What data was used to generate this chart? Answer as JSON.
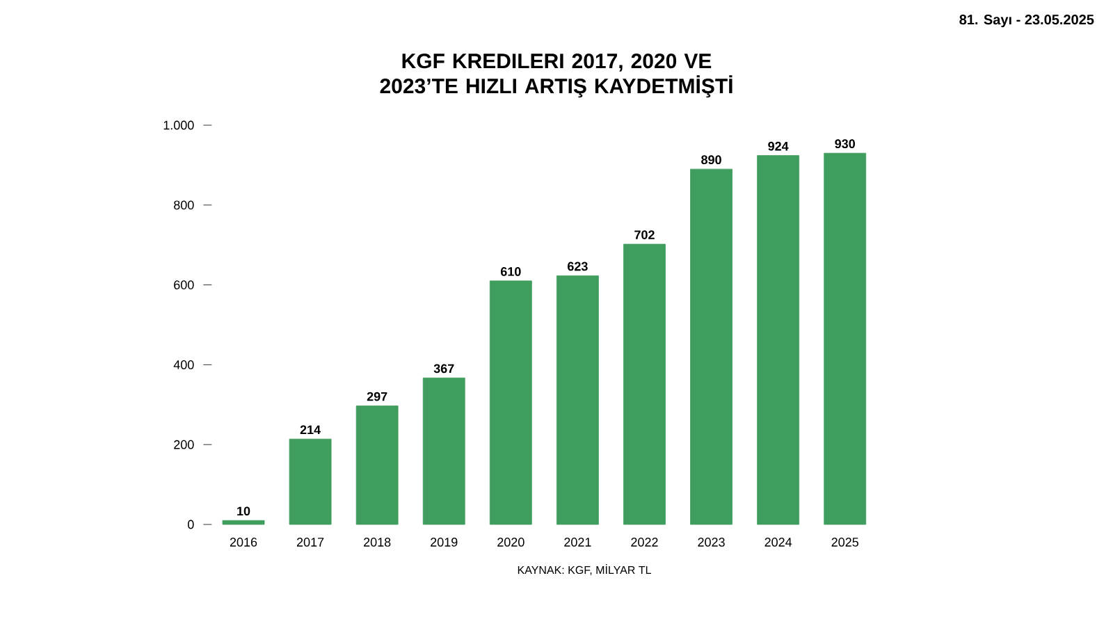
{
  "chart_data": {
    "type": "bar",
    "title": "KGF KREDILERI 2017, 2020 VE 2023’TE HIZLI ARTIŞ KAYDETMİŞTİ",
    "categories": [
      "2016",
      "2017",
      "2018",
      "2019",
      "2020",
      "2021",
      "2022",
      "2023",
      "2024",
      "2025"
    ],
    "values": [
      10,
      214,
      297,
      367,
      610,
      623,
      702,
      890,
      924,
      930
    ],
    "color": "#3f9d5e",
    "ylim": [
      0,
      1000
    ],
    "yticks": [
      0,
      200,
      400,
      600,
      800,
      {
        "value": 1000,
        "label": "1.000"
      }
    ],
    "data_labels": true,
    "grid": false,
    "annotations": [
      "81. Sayı - 23.05.2025",
      "KAYNAK: KGF, MİLYAR TL"
    ]
  }
}
